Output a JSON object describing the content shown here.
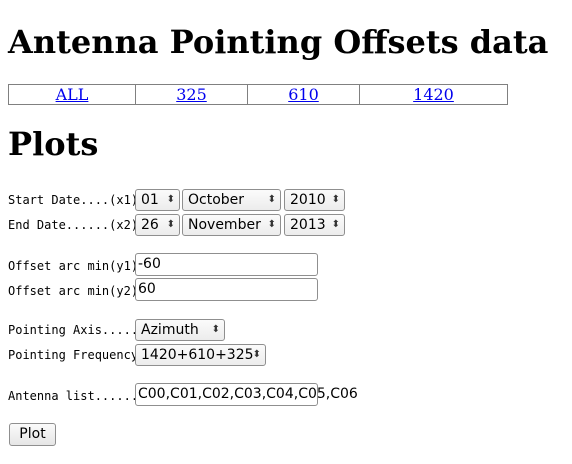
{
  "page": {
    "title": "Antenna Pointing Offsets data",
    "plots_heading": "Plots"
  },
  "freq_links": [
    "ALL",
    "325",
    "610",
    "1420"
  ],
  "form": {
    "start_date": {
      "label": "Start Date....(x1)",
      "day": "01",
      "month": "October",
      "year": "2010"
    },
    "end_date": {
      "label": "End Date......(x2)",
      "day": "26",
      "month": "November",
      "year": "2013"
    },
    "offset_y1": {
      "label": "Offset arc min(y1)",
      "value": "-60"
    },
    "offset_y2": {
      "label": "Offset arc min(y2)",
      "value": "60"
    },
    "pointing_axis": {
      "label": "Pointing Axis.....",
      "value": "Azimuth"
    },
    "pointing_frequency": {
      "label": "Pointing Frequency",
      "value": "1420+610+325"
    },
    "antenna_list": {
      "label": "Antenna list......",
      "value": "C00,C01,C02,C03,C04,C05,C06"
    },
    "submit_label": "Plot"
  },
  "icons": {
    "select_arrow": "chevron-updown-icon"
  }
}
